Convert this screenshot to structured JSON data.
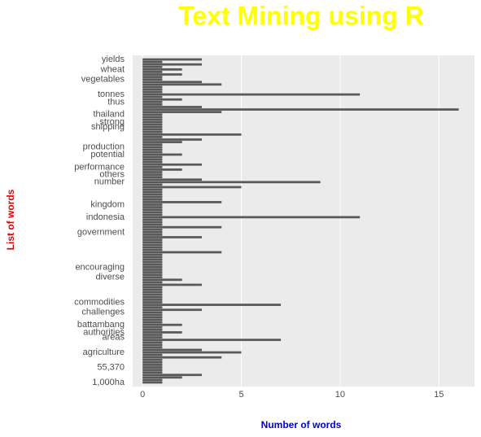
{
  "chart_data": {
    "type": "barh",
    "title": "Text Mining using R",
    "x_label": "Number of words",
    "y_label": "List of words",
    "categories": [
      "yields",
      null,
      null,
      null,
      "wheat",
      null,
      null,
      null,
      "vegetables",
      null,
      null,
      null,
      null,
      null,
      "tonnes",
      null,
      null,
      "thus",
      null,
      null,
      null,
      null,
      "thailand",
      null,
      null,
      "strong",
      null,
      "shipping",
      null,
      null,
      null,
      null,
      null,
      null,
      null,
      "production",
      null,
      null,
      "potential",
      null,
      null,
      null,
      null,
      "performance",
      null,
      null,
      "others",
      null,
      null,
      "number",
      null,
      null,
      null,
      null,
      null,
      null,
      null,
      null,
      "kingdom",
      null,
      null,
      null,
      null,
      "indonesia",
      null,
      null,
      null,
      null,
      null,
      "government",
      null,
      null,
      null,
      null,
      null,
      null,
      null,
      null,
      null,
      null,
      null,
      null,
      null,
      "encouraging",
      null,
      null,
      null,
      "diverse",
      null,
      null,
      null,
      null,
      null,
      null,
      null,
      null,
      null,
      "commodities",
      null,
      null,
      null,
      "challenges",
      null,
      null,
      null,
      null,
      "battambang",
      null,
      null,
      "authorities",
      null,
      "areas",
      null,
      null,
      null,
      null,
      null,
      "agriculture",
      null,
      null,
      null,
      null,
      null,
      "55,370",
      null,
      null,
      null,
      null,
      null,
      "1,000ha"
    ],
    "values": [
      3,
      1,
      3,
      1,
      2,
      1,
      2,
      1,
      1,
      3,
      4,
      1,
      1,
      1,
      11,
      1,
      2,
      1,
      1,
      3,
      16,
      4,
      1,
      1,
      1,
      1,
      1,
      1,
      1,
      1,
      5,
      1,
      3,
      2,
      1,
      1,
      1,
      1,
      2,
      1,
      1,
      1,
      3,
      1,
      2,
      1,
      1,
      1,
      3,
      9,
      1,
      5,
      1,
      1,
      1,
      1,
      1,
      4,
      1,
      1,
      1,
      1,
      1,
      11,
      1,
      1,
      1,
      4,
      1,
      1,
      1,
      3,
      1,
      1,
      1,
      1,
      1,
      4,
      1,
      1,
      1,
      1,
      1,
      1,
      1,
      1,
      1,
      1,
      2,
      1,
      3,
      1,
      1,
      1,
      1,
      1,
      1,
      1,
      7,
      1,
      3,
      1,
      1,
      1,
      1,
      1,
      2,
      1,
      1,
      2,
      1,
      1,
      7,
      1,
      1,
      1,
      3,
      5,
      1,
      4,
      1,
      1,
      1,
      1,
      1,
      1,
      3,
      2,
      1,
      1
    ],
    "color": "#595959",
    "xlim": [
      -0.5,
      16.8
    ],
    "xticks": [
      0,
      5,
      10,
      15
    ],
    "grid": true
  }
}
